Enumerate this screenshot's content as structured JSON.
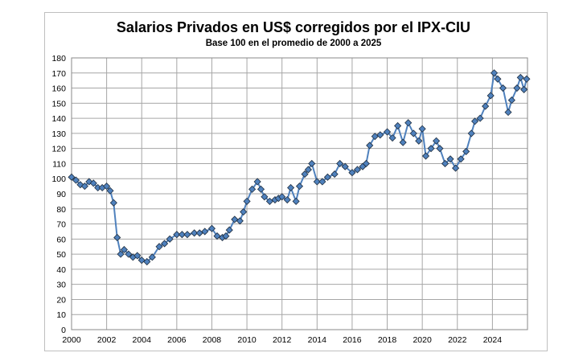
{
  "chart_data": {
    "type": "line",
    "title": "Salarios Privados en US$ corregidos por el IPX-CIU",
    "subtitle": "Base  100 en el promedio de 2000 a 2025",
    "xlabel": "",
    "ylabel": "",
    "xlim": [
      2000,
      2026
    ],
    "ylim": [
      0,
      180
    ],
    "grid": true,
    "legend": "none",
    "x_ticks": [
      "2000",
      "2002",
      "2004",
      "2006",
      "2008",
      "2010",
      "2012",
      "2014",
      "2016",
      "2018",
      "2020",
      "2022",
      "2024"
    ],
    "y_ticks": [
      "0",
      "10",
      "20",
      "30",
      "40",
      "50",
      "60",
      "70",
      "80",
      "90",
      "100",
      "110",
      "120",
      "130",
      "140",
      "150",
      "160",
      "170",
      "180"
    ],
    "line_color": "#4f81bd",
    "marker_color": "#4f81bd",
    "series": [
      {
        "name": "Salarios Privados",
        "x": [
          2000,
          2000.25,
          2000.5,
          2000.75,
          2001,
          2001.25,
          2001.5,
          2001.75,
          2002,
          2002.2,
          2002.4,
          2002.6,
          2002.8,
          2003,
          2003.25,
          2003.5,
          2003.75,
          2004,
          2004.3,
          2004.6,
          2005,
          2005.3,
          2005.6,
          2006,
          2006.3,
          2006.6,
          2007,
          2007.3,
          2007.6,
          2008,
          2008.3,
          2008.6,
          2008.8,
          2009,
          2009.3,
          2009.6,
          2009.8,
          2010,
          2010.3,
          2010.6,
          2010.8,
          2011,
          2011.3,
          2011.6,
          2011.8,
          2012,
          2012.3,
          2012.5,
          2012.8,
          2013,
          2013.3,
          2013.5,
          2013.7,
          2014,
          2014.3,
          2014.6,
          2015,
          2015.3,
          2015.6,
          2016,
          2016.3,
          2016.6,
          2016.8,
          2017,
          2017.3,
          2017.6,
          2018,
          2018.3,
          2018.6,
          2018.9,
          2019.2,
          2019.5,
          2019.8,
          2020,
          2020.2,
          2020.5,
          2020.8,
          2021,
          2021.3,
          2021.6,
          2021.9,
          2022.2,
          2022.5,
          2022.8,
          2023,
          2023.3,
          2023.6,
          2023.9,
          2024.1,
          2024.3,
          2024.6,
          2024.9,
          2025.1,
          2025.4,
          2025.6,
          2025.8,
          2025.95
        ],
        "values": [
          101,
          99,
          96,
          95,
          98,
          97,
          94,
          94,
          95,
          92,
          84,
          61,
          50,
          53,
          50,
          48,
          49,
          46,
          45,
          48,
          55,
          57,
          60,
          63,
          63,
          63,
          64,
          64,
          65,
          67,
          62,
          61,
          62,
          66,
          73,
          72,
          78,
          85,
          93,
          98,
          93,
          88,
          85,
          86,
          87,
          88,
          86,
          94,
          85,
          95,
          103,
          106,
          110,
          98,
          98,
          101,
          103,
          110,
          108,
          104,
          106,
          108,
          110,
          122,
          128,
          129,
          131,
          127,
          135,
          124,
          137,
          130,
          125,
          133,
          115,
          120,
          125,
          120,
          110,
          113,
          107,
          113,
          118,
          130,
          138,
          140,
          148,
          155,
          170,
          166,
          160,
          144,
          152,
          160,
          167,
          159,
          166
        ]
      }
    ]
  }
}
